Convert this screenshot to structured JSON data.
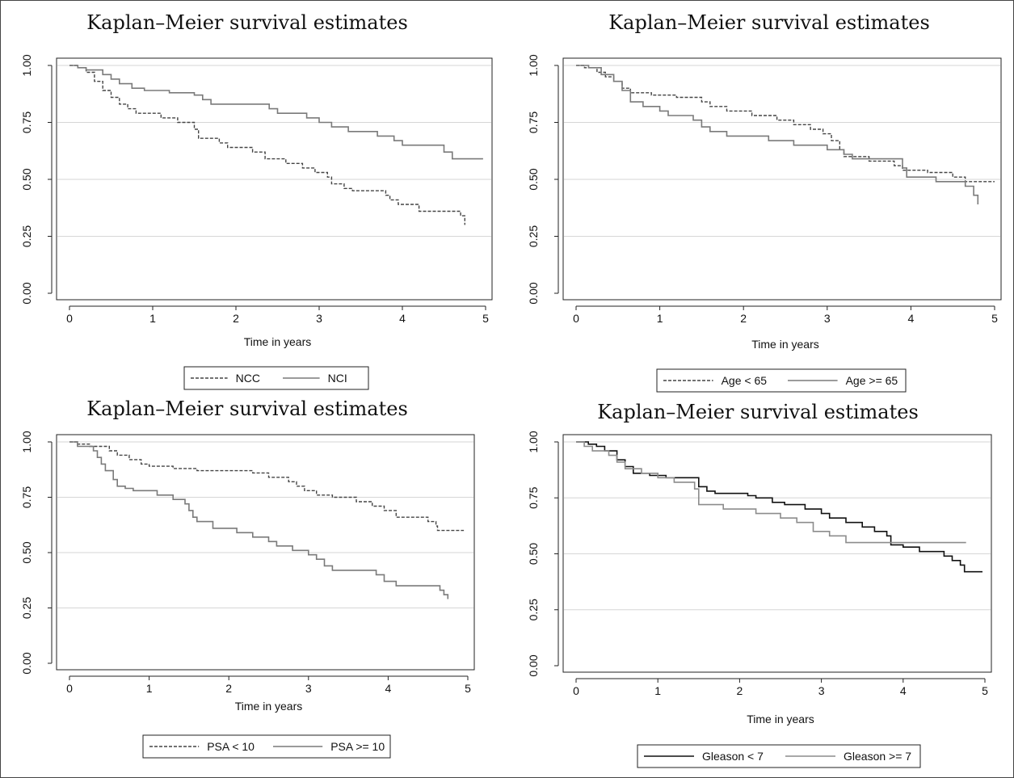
{
  "chart_data": [
    {
      "type": "line",
      "title": "Kaplan–Meier survival estimates",
      "xlabel": "Time in years",
      "ylabel": "",
      "xlim": [
        0,
        5
      ],
      "ylim": [
        0,
        1
      ],
      "x_ticks": [
        "0",
        "1",
        "2",
        "3",
        "4",
        "5"
      ],
      "y_ticks": [
        "0.00",
        "0.25",
        "0.50",
        "0.75",
        "1.00"
      ],
      "grid": "horizontal",
      "legend_position": "bottom",
      "series": [
        {
          "name": "NCC",
          "line_style": "dashed",
          "color": "#444444",
          "points": [
            [
              0,
              1.0
            ],
            [
              0.1,
              0.99
            ],
            [
              0.2,
              0.97
            ],
            [
              0.3,
              0.93
            ],
            [
              0.4,
              0.89
            ],
            [
              0.5,
              0.86
            ],
            [
              0.6,
              0.83
            ],
            [
              0.7,
              0.81
            ],
            [
              0.8,
              0.79
            ],
            [
              1.0,
              0.79
            ],
            [
              1.1,
              0.77
            ],
            [
              1.3,
              0.75
            ],
            [
              1.5,
              0.72
            ],
            [
              1.55,
              0.68
            ],
            [
              1.8,
              0.66
            ],
            [
              1.9,
              0.64
            ],
            [
              2.2,
              0.62
            ],
            [
              2.35,
              0.59
            ],
            [
              2.6,
              0.57
            ],
            [
              2.8,
              0.55
            ],
            [
              2.95,
              0.53
            ],
            [
              3.1,
              0.51
            ],
            [
              3.15,
              0.48
            ],
            [
              3.3,
              0.46
            ],
            [
              3.4,
              0.45
            ],
            [
              3.8,
              0.43
            ],
            [
              3.85,
              0.41
            ],
            [
              3.95,
              0.39
            ],
            [
              4.2,
              0.36
            ],
            [
              4.7,
              0.34
            ],
            [
              4.75,
              0.3
            ]
          ]
        },
        {
          "name": "NCI",
          "line_style": "solid",
          "color": "#7a7a7a",
          "points": [
            [
              0,
              1.0
            ],
            [
              0.1,
              0.99
            ],
            [
              0.2,
              0.98
            ],
            [
              0.4,
              0.96
            ],
            [
              0.5,
              0.94
            ],
            [
              0.6,
              0.92
            ],
            [
              0.75,
              0.9
            ],
            [
              0.9,
              0.89
            ],
            [
              1.2,
              0.88
            ],
            [
              1.5,
              0.87
            ],
            [
              1.6,
              0.85
            ],
            [
              1.7,
              0.83
            ],
            [
              2.4,
              0.81
            ],
            [
              2.5,
              0.79
            ],
            [
              2.85,
              0.77
            ],
            [
              3.0,
              0.75
            ],
            [
              3.15,
              0.73
            ],
            [
              3.35,
              0.71
            ],
            [
              3.7,
              0.69
            ],
            [
              3.9,
              0.67
            ],
            [
              4.0,
              0.65
            ],
            [
              4.5,
              0.62
            ],
            [
              4.6,
              0.59
            ],
            [
              4.97,
              0.59
            ]
          ]
        }
      ]
    },
    {
      "type": "line",
      "title": "Kaplan–Meier survival estimates",
      "xlabel": "Time in years",
      "ylabel": "",
      "xlim": [
        0,
        5
      ],
      "ylim": [
        0,
        1
      ],
      "x_ticks": [
        "0",
        "1",
        "2",
        "3",
        "4",
        "5"
      ],
      "y_ticks": [
        "0.00",
        "0.25",
        "0.50",
        "0.75",
        "1.00"
      ],
      "grid": "horizontal",
      "legend_position": "bottom",
      "series": [
        {
          "name": "Age < 65",
          "line_style": "dashed",
          "color": "#444444",
          "points": [
            [
              0,
              1.0
            ],
            [
              0.1,
              0.99
            ],
            [
              0.25,
              0.97
            ],
            [
              0.35,
              0.95
            ],
            [
              0.45,
              0.93
            ],
            [
              0.55,
              0.9
            ],
            [
              0.65,
              0.88
            ],
            [
              0.9,
              0.87
            ],
            [
              1.2,
              0.86
            ],
            [
              1.5,
              0.84
            ],
            [
              1.6,
              0.82
            ],
            [
              1.8,
              0.8
            ],
            [
              2.1,
              0.78
            ],
            [
              2.4,
              0.76
            ],
            [
              2.6,
              0.74
            ],
            [
              2.8,
              0.72
            ],
            [
              2.95,
              0.7
            ],
            [
              3.05,
              0.67
            ],
            [
              3.15,
              0.63
            ],
            [
              3.2,
              0.6
            ],
            [
              3.5,
              0.58
            ],
            [
              3.8,
              0.56
            ],
            [
              3.9,
              0.54
            ],
            [
              4.2,
              0.53
            ],
            [
              4.5,
              0.51
            ],
            [
              4.65,
              0.49
            ],
            [
              5.0,
              0.49
            ]
          ]
        },
        {
          "name": "Age >= 65",
          "line_style": "solid",
          "color": "#7a7a7a",
          "points": [
            [
              0,
              1.0
            ],
            [
              0.15,
              0.99
            ],
            [
              0.3,
              0.96
            ],
            [
              0.45,
              0.93
            ],
            [
              0.55,
              0.89
            ],
            [
              0.65,
              0.84
            ],
            [
              0.8,
              0.82
            ],
            [
              1.0,
              0.8
            ],
            [
              1.1,
              0.78
            ],
            [
              1.4,
              0.76
            ],
            [
              1.5,
              0.73
            ],
            [
              1.6,
              0.71
            ],
            [
              1.8,
              0.69
            ],
            [
              2.3,
              0.67
            ],
            [
              2.6,
              0.65
            ],
            [
              3.0,
              0.63
            ],
            [
              3.2,
              0.61
            ],
            [
              3.3,
              0.59
            ],
            [
              3.8,
              0.59
            ],
            [
              3.9,
              0.55
            ],
            [
              3.95,
              0.51
            ],
            [
              4.3,
              0.49
            ],
            [
              4.65,
              0.47
            ],
            [
              4.75,
              0.43
            ],
            [
              4.8,
              0.39
            ]
          ]
        }
      ]
    },
    {
      "type": "line",
      "title": "Kaplan–Meier survival estimates",
      "xlabel": "Time in years",
      "ylabel": "",
      "xlim": [
        0,
        5
      ],
      "ylim": [
        0,
        1
      ],
      "x_ticks": [
        "0",
        "1",
        "2",
        "3",
        "4",
        "5"
      ],
      "y_ticks": [
        "0.00",
        "0.25",
        "0.50",
        "0.75",
        "1.00"
      ],
      "grid": "horizontal",
      "legend_position": "bottom",
      "series": [
        {
          "name": "PSA < 10",
          "line_style": "dashed",
          "color": "#444444",
          "points": [
            [
              0,
              1.0
            ],
            [
              0.1,
              0.99
            ],
            [
              0.25,
              0.98
            ],
            [
              0.5,
              0.96
            ],
            [
              0.6,
              0.94
            ],
            [
              0.75,
              0.92
            ],
            [
              0.9,
              0.9
            ],
            [
              1.0,
              0.89
            ],
            [
              1.2,
              0.89
            ],
            [
              1.3,
              0.88
            ],
            [
              1.6,
              0.87
            ],
            [
              2.3,
              0.86
            ],
            [
              2.5,
              0.84
            ],
            [
              2.75,
              0.82
            ],
            [
              2.85,
              0.8
            ],
            [
              2.95,
              0.78
            ],
            [
              3.1,
              0.76
            ],
            [
              3.3,
              0.75
            ],
            [
              3.6,
              0.73
            ],
            [
              3.8,
              0.71
            ],
            [
              3.95,
              0.69
            ],
            [
              4.1,
              0.66
            ],
            [
              4.35,
              0.66
            ],
            [
              4.5,
              0.64
            ],
            [
              4.6,
              0.62
            ],
            [
              4.62,
              0.6
            ],
            [
              4.95,
              0.6
            ]
          ]
        },
        {
          "name": "PSA  >= 10",
          "line_style": "solid",
          "color": "#7a7a7a",
          "points": [
            [
              0,
              1.0
            ],
            [
              0.1,
              0.98
            ],
            [
              0.3,
              0.96
            ],
            [
              0.35,
              0.93
            ],
            [
              0.4,
              0.9
            ],
            [
              0.45,
              0.87
            ],
            [
              0.55,
              0.83
            ],
            [
              0.6,
              0.8
            ],
            [
              0.7,
              0.79
            ],
            [
              0.8,
              0.78
            ],
            [
              1.1,
              0.76
            ],
            [
              1.3,
              0.74
            ],
            [
              1.45,
              0.72
            ],
            [
              1.5,
              0.69
            ],
            [
              1.55,
              0.66
            ],
            [
              1.6,
              0.64
            ],
            [
              1.8,
              0.61
            ],
            [
              2.1,
              0.59
            ],
            [
              2.3,
              0.57
            ],
            [
              2.5,
              0.55
            ],
            [
              2.6,
              0.53
            ],
            [
              2.8,
              0.51
            ],
            [
              3.0,
              0.49
            ],
            [
              3.1,
              0.47
            ],
            [
              3.2,
              0.44
            ],
            [
              3.3,
              0.42
            ],
            [
              3.85,
              0.4
            ],
            [
              3.95,
              0.37
            ],
            [
              4.1,
              0.35
            ],
            [
              4.65,
              0.33
            ],
            [
              4.7,
              0.31
            ],
            [
              4.75,
              0.29
            ]
          ]
        }
      ]
    },
    {
      "type": "line",
      "title": "Kaplan–Meier survival estimates",
      "xlabel": "Time in years",
      "ylabel": "",
      "xlim": [
        0,
        5
      ],
      "ylim": [
        0,
        1
      ],
      "x_ticks": [
        "0",
        "1",
        "2",
        "3",
        "4",
        "5"
      ],
      "y_ticks": [
        "0.00",
        "0.25",
        "0.50",
        "0.75",
        "1.00"
      ],
      "grid": "horizontal",
      "legend_position": "bottom",
      "series": [
        {
          "name": "Gleason < 7",
          "line_style": "solid",
          "color": "#111111",
          "points": [
            [
              0,
              1.0
            ],
            [
              0.15,
              0.99
            ],
            [
              0.25,
              0.98
            ],
            [
              0.35,
              0.96
            ],
            [
              0.5,
              0.92
            ],
            [
              0.6,
              0.89
            ],
            [
              0.7,
              0.86
            ],
            [
              0.9,
              0.85
            ],
            [
              1.1,
              0.84
            ],
            [
              1.5,
              0.8
            ],
            [
              1.6,
              0.78
            ],
            [
              1.7,
              0.77
            ],
            [
              2.1,
              0.76
            ],
            [
              2.2,
              0.75
            ],
            [
              2.4,
              0.73
            ],
            [
              2.55,
              0.72
            ],
            [
              2.8,
              0.7
            ],
            [
              3.0,
              0.68
            ],
            [
              3.1,
              0.66
            ],
            [
              3.3,
              0.64
            ],
            [
              3.5,
              0.62
            ],
            [
              3.65,
              0.6
            ],
            [
              3.8,
              0.58
            ],
            [
              3.85,
              0.54
            ],
            [
              4.0,
              0.53
            ],
            [
              4.2,
              0.51
            ],
            [
              4.5,
              0.49
            ],
            [
              4.6,
              0.47
            ],
            [
              4.7,
              0.45
            ],
            [
              4.75,
              0.42
            ],
            [
              4.97,
              0.42
            ]
          ]
        },
        {
          "name": "Gleason >= 7",
          "line_style": "solid",
          "color": "#8c8c8c",
          "points": [
            [
              0,
              1.0
            ],
            [
              0.1,
              0.98
            ],
            [
              0.2,
              0.96
            ],
            [
              0.4,
              0.94
            ],
            [
              0.5,
              0.91
            ],
            [
              0.6,
              0.88
            ],
            [
              0.8,
              0.86
            ],
            [
              1.0,
              0.84
            ],
            [
              1.2,
              0.82
            ],
            [
              1.45,
              0.79
            ],
            [
              1.5,
              0.72
            ],
            [
              1.8,
              0.7
            ],
            [
              2.2,
              0.68
            ],
            [
              2.5,
              0.66
            ],
            [
              2.7,
              0.64
            ],
            [
              2.9,
              0.6
            ],
            [
              3.1,
              0.58
            ],
            [
              3.3,
              0.55
            ],
            [
              4.77,
              0.55
            ]
          ]
        }
      ]
    }
  ]
}
